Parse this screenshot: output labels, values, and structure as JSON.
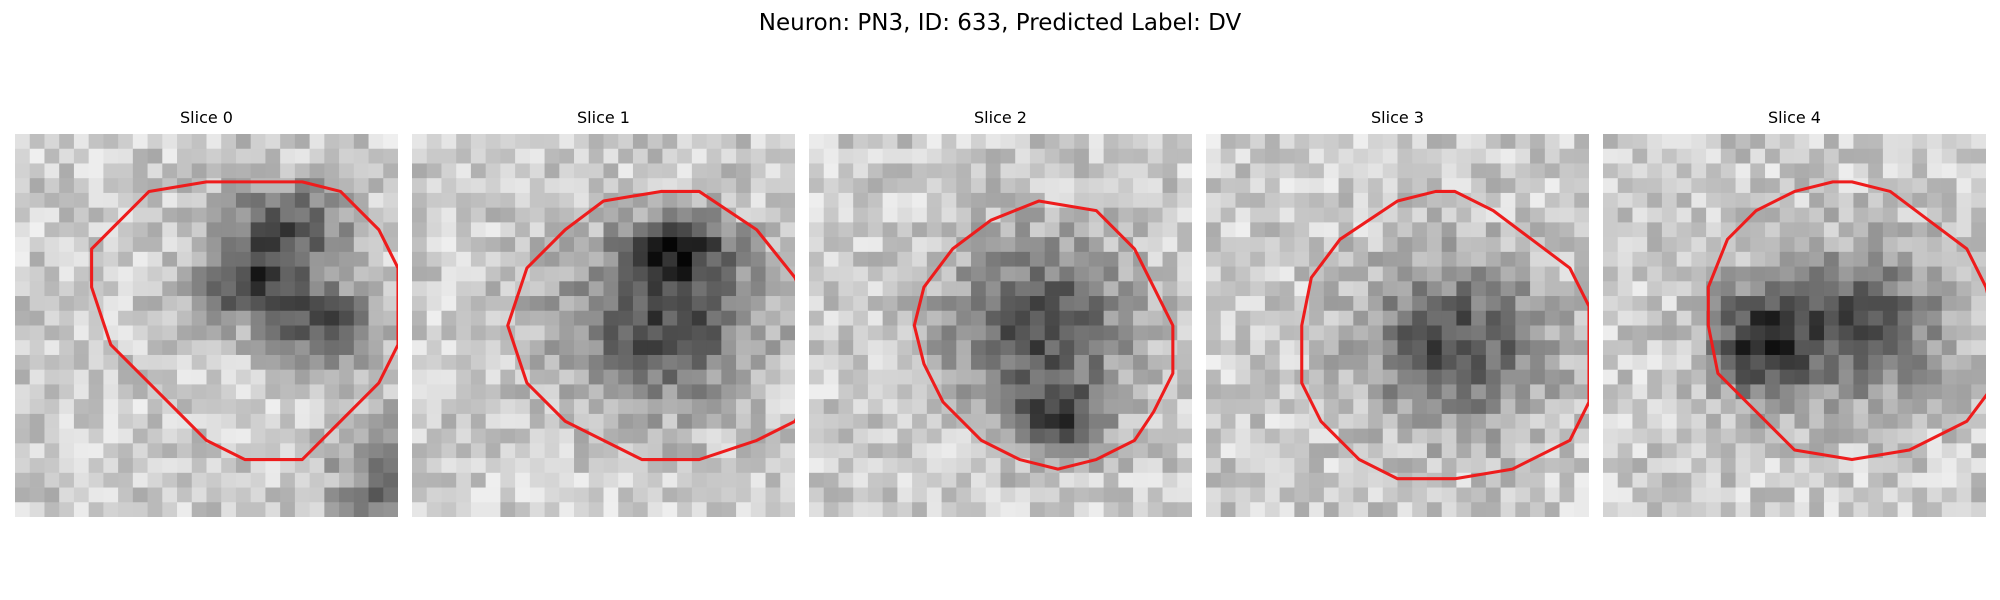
{
  "figure": {
    "title": "Neuron: PN3, ID: 633, Predicted Label: DV",
    "contour_color": "#ee1c1c",
    "colormap": "grayscale"
  },
  "panels": [
    {
      "title": "Slice 0",
      "contour": [
        [
          15,
          2.5
        ],
        [
          17,
          3
        ],
        [
          19,
          5
        ],
        [
          20,
          7
        ],
        [
          20,
          9
        ],
        [
          20,
          11
        ],
        [
          19,
          13
        ],
        [
          17,
          15
        ],
        [
          15,
          17
        ],
        [
          12,
          17
        ],
        [
          10,
          16
        ],
        [
          9,
          15
        ],
        [
          7,
          13
        ],
        [
          5,
          11
        ],
        [
          4,
          8
        ],
        [
          4,
          6
        ],
        [
          5,
          5
        ],
        [
          7,
          3
        ],
        [
          10,
          2.5
        ],
        [
          13,
          2.5
        ]
      ],
      "blobs": [
        [
          14,
          5,
          3.5,
          2.6
        ],
        [
          12,
          8,
          2.4,
          1.9
        ],
        [
          16,
          10,
          3,
          2.4
        ],
        [
          21,
          18,
          4,
          3
        ],
        [
          3,
          25,
          5,
          3
        ]
      ]
    },
    {
      "title": "Slice 1",
      "contour": [
        [
          15,
          3
        ],
        [
          18,
          5
        ],
        [
          20,
          7.5
        ],
        [
          21,
          10
        ],
        [
          21,
          13
        ],
        [
          20,
          15
        ],
        [
          18,
          16
        ],
        [
          15,
          17
        ],
        [
          12,
          17
        ],
        [
          10,
          16
        ],
        [
          8,
          15
        ],
        [
          6,
          13
        ],
        [
          5,
          10
        ],
        [
          6,
          7
        ],
        [
          8,
          5
        ],
        [
          10,
          3.5
        ],
        [
          13,
          3
        ]
      ],
      "blobs": [
        [
          13,
          10,
          5.5,
          4.4
        ],
        [
          14,
          6,
          3,
          2
        ],
        [
          3,
          27,
          5,
          2.6
        ],
        [
          23,
          25,
          3,
          3
        ]
      ]
    },
    {
      "title": "Slice 2",
      "contour": [
        [
          12,
          3.5
        ],
        [
          15,
          4
        ],
        [
          17,
          6
        ],
        [
          18,
          8
        ],
        [
          19,
          10
        ],
        [
          19,
          12.5
        ],
        [
          18,
          14.5
        ],
        [
          17,
          16
        ],
        [
          15,
          17
        ],
        [
          13,
          17.5
        ],
        [
          11,
          17
        ],
        [
          9,
          16
        ],
        [
          7,
          14
        ],
        [
          6,
          12
        ],
        [
          5.5,
          10
        ],
        [
          6,
          8
        ],
        [
          7.5,
          6
        ],
        [
          9.5,
          4.5
        ]
      ],
      "blobs": [
        [
          12,
          10,
          5,
          4.5
        ],
        [
          13,
          15,
          2.5,
          2
        ],
        [
          3,
          26,
          5,
          3
        ]
      ]
    },
    {
      "title": "Slice 3",
      "contour": [
        [
          13,
          3
        ],
        [
          15,
          4
        ],
        [
          17,
          5.5
        ],
        [
          19,
          7
        ],
        [
          20,
          9
        ],
        [
          20,
          11
        ],
        [
          20,
          14
        ],
        [
          19,
          16
        ],
        [
          16,
          17.5
        ],
        [
          13,
          18
        ],
        [
          10,
          18
        ],
        [
          8,
          17
        ],
        [
          6,
          15
        ],
        [
          5,
          13
        ],
        [
          5,
          10
        ],
        [
          5.5,
          7.5
        ],
        [
          7,
          5.5
        ],
        [
          10,
          3.5
        ],
        [
          12,
          3
        ]
      ],
      "blobs": [
        [
          13,
          11,
          5,
          4.3
        ],
        [
          4,
          26,
          5,
          3
        ],
        [
          22,
          26,
          3,
          2.5
        ]
      ]
    },
    {
      "title": "Slice 4",
      "contour": [
        [
          13,
          2.5
        ],
        [
          15,
          3
        ],
        [
          17,
          4.5
        ],
        [
          19,
          6
        ],
        [
          20,
          8
        ],
        [
          20.5,
          10
        ],
        [
          20.5,
          13
        ],
        [
          19,
          15
        ],
        [
          16,
          16.5
        ],
        [
          13,
          17
        ],
        [
          10,
          16.5
        ],
        [
          8,
          14.5
        ],
        [
          6,
          12.5
        ],
        [
          5.5,
          10
        ],
        [
          5.5,
          8
        ],
        [
          6.5,
          5.5
        ],
        [
          8,
          4
        ],
        [
          10,
          3
        ],
        [
          12,
          2.5
        ]
      ],
      "blobs": [
        [
          13,
          10,
          5.3,
          4
        ],
        [
          8,
          11,
          2.5,
          3
        ],
        [
          3,
          27,
          4,
          2.5
        ]
      ]
    }
  ]
}
